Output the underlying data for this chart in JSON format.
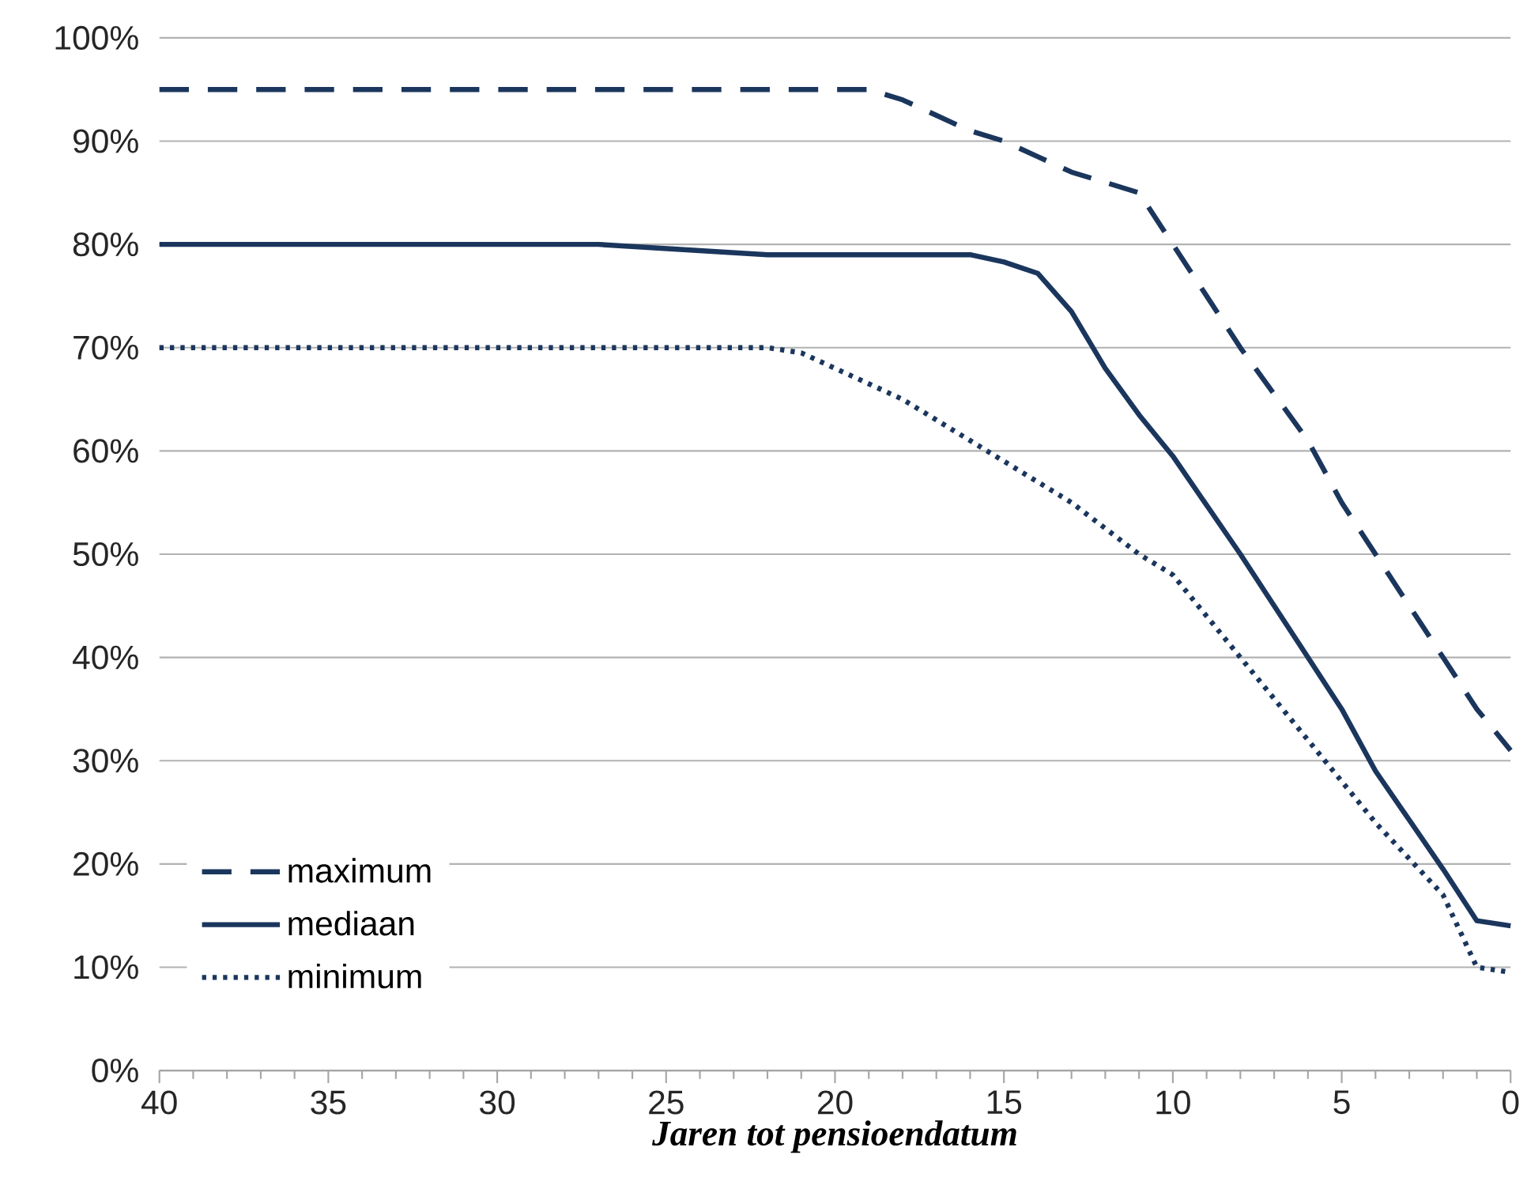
{
  "chart_data": {
    "type": "line",
    "xlabel": "Jaren tot pensioendatum",
    "x": [
      40,
      35,
      30,
      27,
      22,
      21,
      19,
      18,
      16,
      15,
      14,
      13,
      12,
      11,
      10,
      8,
      6,
      5,
      4,
      2,
      1,
      0
    ],
    "series": [
      {
        "name": "maximum",
        "color": "#1b365d",
        "line_style": "dashed",
        "values": [
          95,
          95,
          95,
          95,
          95,
          95,
          95,
          94,
          91,
          90,
          88.5,
          87,
          86,
          85,
          80,
          70,
          61,
          55,
          50,
          40,
          35,
          31
        ]
      },
      {
        "name": "mediaan",
        "color": "#1b365d",
        "line_style": "solid",
        "values": [
          80,
          80,
          80,
          80,
          79,
          79,
          79,
          79,
          79,
          78.3,
          77.2,
          73.5,
          68,
          63.5,
          59.5,
          50,
          40,
          35,
          29,
          19.5,
          14.5,
          14
        ]
      },
      {
        "name": "minimum",
        "color": "#1b365d",
        "line_style": "dotted",
        "values": [
          70,
          70,
          70,
          70,
          70,
          69.5,
          66.5,
          65,
          61,
          59,
          57,
          55,
          52.5,
          50,
          48,
          40,
          32,
          28,
          24,
          17,
          10,
          9.5
        ]
      }
    ],
    "xlim": [
      40,
      0
    ],
    "xticks": [
      40,
      35,
      30,
      25,
      20,
      15,
      10,
      5,
      0
    ],
    "ylim": [
      0,
      100
    ],
    "yticks": [
      {
        "value": 0,
        "label": "0%"
      },
      {
        "value": 10,
        "label": "10%"
      },
      {
        "value": 20,
        "label": "20%"
      },
      {
        "value": 30,
        "label": "30%"
      },
      {
        "value": 40,
        "label": "40%"
      },
      {
        "value": 50,
        "label": "50%"
      },
      {
        "value": 60,
        "label": "60%"
      },
      {
        "value": 70,
        "label": "70%"
      },
      {
        "value": 80,
        "label": "80%"
      },
      {
        "value": 90,
        "label": "90%"
      },
      {
        "value": 100,
        "label": "100%"
      }
    ],
    "grid": "y",
    "legend": "bottom left",
    "marker": "none"
  }
}
